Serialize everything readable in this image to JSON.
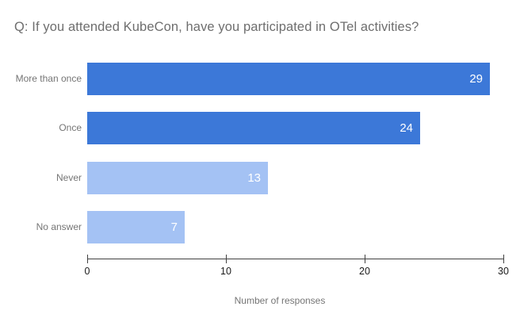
{
  "chart_data": {
    "type": "bar",
    "orientation": "horizontal",
    "title": "Q: If you attended KubeCon, have you participated in OTel activities?",
    "categories": [
      "More than once",
      "Once",
      "Never",
      "No answer"
    ],
    "values": [
      29,
      24,
      13,
      7
    ],
    "series": [
      {
        "name": "Number of responses",
        "values": [
          29,
          24,
          13,
          7
        ]
      }
    ],
    "bar_colors": [
      "#3c78d8",
      "#3c78d8",
      "#a4c2f4",
      "#a4c2f4"
    ],
    "value_label_color": "#ffffff",
    "xlabel": "Number of responses",
    "ylabel": "",
    "xlim": [
      0,
      30
    ],
    "x_ticks": [
      "0",
      "10",
      "20",
      "30"
    ],
    "x_tick_values": [
      0,
      10,
      20,
      30
    ],
    "grid": false,
    "legend": "none",
    "background": "#ffffff",
    "title_color": "#6e6e6e",
    "category_label_color": "#757575",
    "axis_line_color": "#424242"
  }
}
